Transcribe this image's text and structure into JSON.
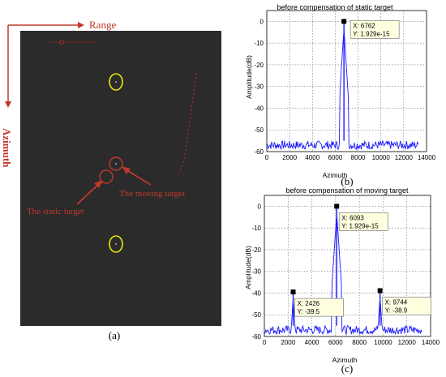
{
  "sar": {
    "range_label": "Range",
    "azimuth_label": "Azimuth",
    "static_label": "The static target",
    "moving_label": "The moving target",
    "caption": "(a)"
  },
  "colors": {
    "signal": "#1a1aff",
    "annotation": "#c0392b",
    "marker_circle": "#e8e800"
  },
  "chart_data": [
    {
      "type": "line",
      "title": "before compensation of static target",
      "xlabel": "Azimuth",
      "ylabel": "Amplitude(dB)",
      "xlim": [
        0,
        14000
      ],
      "ylim": [
        -60,
        5
      ],
      "xticks": [
        "0",
        "2000",
        "4000",
        "6000",
        "8000",
        "10000",
        "12000",
        "14000"
      ],
      "yticks": [
        "0",
        "-10",
        "-20",
        "-30",
        "-40",
        "-50",
        "-60"
      ],
      "grid": true,
      "noise_floor": -57,
      "span": [
        0,
        13300
      ],
      "peaks": [
        {
          "x": 6762,
          "y": 0
        }
      ],
      "datatips": [
        {
          "x_text": "X: 6762",
          "y_text": "Y: 1.929e-15"
        }
      ],
      "caption": "(b)"
    },
    {
      "type": "line",
      "title": "before compensation of moving target",
      "xlabel": "Azimuth",
      "ylabel": "Amplitude(dB)",
      "xlim": [
        0,
        14000
      ],
      "ylim": [
        -60,
        5
      ],
      "xticks": [
        "0",
        "2000",
        "4000",
        "6000",
        "8000",
        "10000",
        "12000",
        "14000"
      ],
      "yticks": [
        "0",
        "-10",
        "-20",
        "-30",
        "-40",
        "-50",
        "-60"
      ],
      "grid": true,
      "noise_floor": -57,
      "span": [
        0,
        13300
      ],
      "peaks": [
        {
          "x": 2426,
          "y": -39.5
        },
        {
          "x": 6093,
          "y": 0
        },
        {
          "x": 9744,
          "y": -38.9
        }
      ],
      "datatips": [
        {
          "x_text": "X: 2426",
          "y_text": "Y: -39.5"
        },
        {
          "x_text": "X: 6093",
          "y_text": "Y: 1.929e-15"
        },
        {
          "x_text": "X: 9744",
          "y_text": "Y: -38.9"
        }
      ],
      "caption": "(c)"
    }
  ]
}
